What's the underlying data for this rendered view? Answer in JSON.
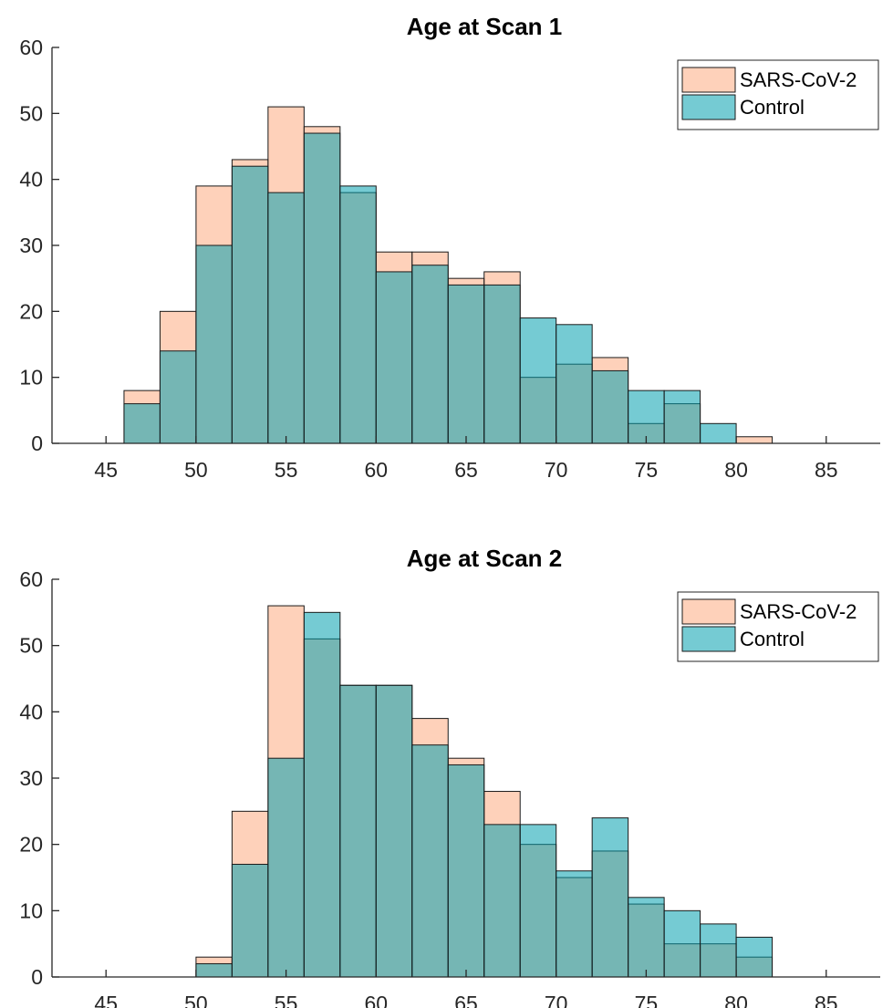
{
  "colors": {
    "sars": "#FEAC82",
    "control": "#04A0AF",
    "bar_opacity": 0.55
  },
  "chart_data": [
    {
      "type": "bar",
      "title": "Age at Scan 1",
      "xlabel": "",
      "ylabel": "",
      "xlim": [
        42,
        88
      ],
      "ylim": [
        0,
        60
      ],
      "xticks": [
        "45",
        "50",
        "55",
        "60",
        "65",
        "70",
        "75",
        "80",
        "85"
      ],
      "yticks": [
        "0",
        "10",
        "20",
        "30",
        "40",
        "50",
        "60"
      ],
      "bin_edges": [
        46,
        48,
        50,
        52,
        54,
        56,
        58,
        60,
        62,
        64,
        66,
        68,
        70,
        72,
        74,
        76,
        78,
        80,
        82
      ],
      "legend": "top-right",
      "series": [
        {
          "name": "SARS-CoV-2",
          "values": [
            8,
            20,
            39,
            43,
            51,
            48,
            38,
            29,
            29,
            25,
            26,
            10,
            12,
            13,
            3,
            6,
            0,
            1
          ]
        },
        {
          "name": "Control",
          "values": [
            6,
            14,
            30,
            42,
            38,
            47,
            39,
            26,
            27,
            24,
            24,
            19,
            18,
            11,
            8,
            8,
            3,
            0
          ]
        }
      ]
    },
    {
      "type": "bar",
      "title": "Age at Scan 2",
      "xlabel": "",
      "ylabel": "",
      "xlim": [
        42,
        88
      ],
      "ylim": [
        0,
        60
      ],
      "xticks": [
        "45",
        "50",
        "55",
        "60",
        "65",
        "70",
        "75",
        "80",
        "85"
      ],
      "yticks": [
        "0",
        "10",
        "20",
        "30",
        "40",
        "50",
        "60"
      ],
      "bin_edges": [
        50,
        52,
        54,
        56,
        58,
        60,
        62,
        64,
        66,
        68,
        70,
        72,
        74,
        76,
        78,
        80,
        82
      ],
      "legend": "top-right",
      "series": [
        {
          "name": "SARS-CoV-2",
          "values": [
            3,
            25,
            56,
            51,
            44,
            44,
            39,
            33,
            28,
            20,
            15,
            19,
            11,
            5,
            5,
            3
          ]
        },
        {
          "name": "Control",
          "values": [
            2,
            17,
            33,
            55,
            44,
            44,
            35,
            32,
            23,
            23,
            16,
            24,
            12,
            10,
            8,
            6
          ]
        }
      ]
    }
  ]
}
